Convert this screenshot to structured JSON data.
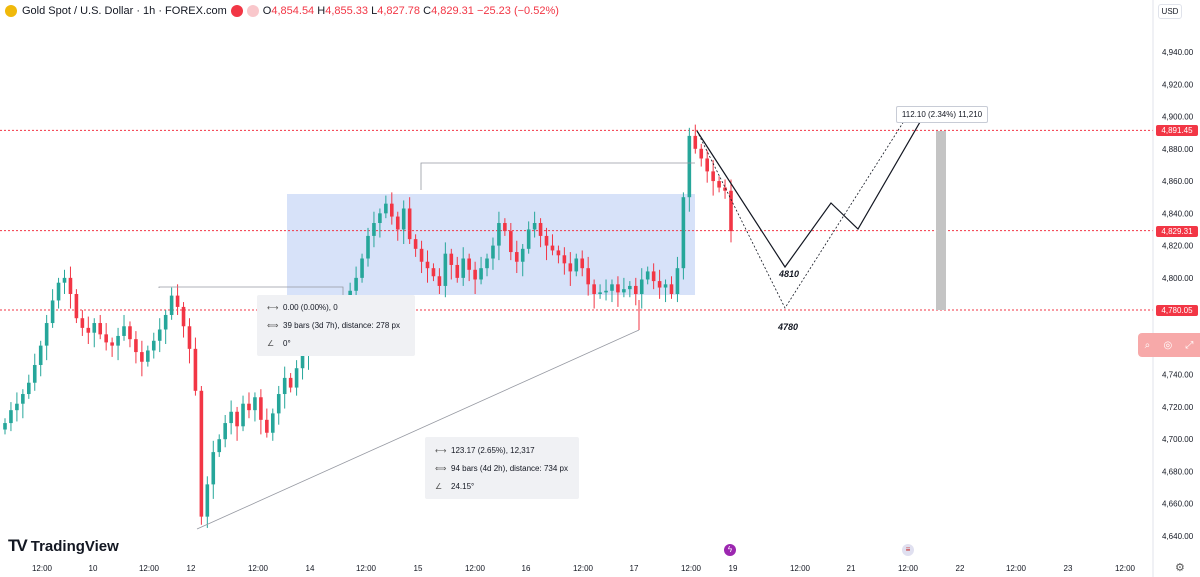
{
  "header": {
    "symbol": "Gold Spot / U.S. Dollar · 1h · FOREX.com",
    "o_key": "O",
    "o": "4,854.54",
    "h_key": "H",
    "h": "4,855.33",
    "l_key": "L",
    "l": "4,827.78",
    "c_key": "C",
    "c": "4,829.31",
    "change": "−25.23 (−0.52%)"
  },
  "currency": "USD",
  "brand": "TradingView",
  "price_labels": {
    "top": "4,891.45",
    "current": "4,829.31",
    "bottom": "4,780.05"
  },
  "callout": "112.10 (2.34%) 11,210",
  "measure_small": {
    "price": "0.00 (0.00%), 0",
    "bars": "39 bars (3d 7h), distance: 278 px",
    "angle": "0°"
  },
  "measure_large": {
    "price": "123.17 (2.65%), 12,317",
    "bars": "94 bars (4d 2h), distance: 734 px",
    "angle": "24.15°"
  },
  "annotations": {
    "a1": "4810",
    "a2": "4780"
  },
  "icons": {
    "event1": "lightning-icon",
    "event2": "us-flag-icon",
    "settings": "gear-icon",
    "search": "search-icon"
  },
  "colors": {
    "up": "#26a69a",
    "down": "#f23645",
    "zone": "#c9d8f7"
  },
  "chart_data": {
    "type": "candlestick",
    "title": "Gold Spot / U.S. Dollar · 1h · FOREX.com",
    "y_ticks": [
      4940,
      4920,
      4900,
      4880,
      4860,
      4840,
      4820,
      4800,
      4780,
      4760,
      4740,
      4720,
      4700,
      4680,
      4660,
      4640
    ],
    "y_tick_labels": [
      "4,940.00",
      "4,920.00",
      "4,900.00",
      "4,880.00",
      "4,860.00",
      "4,840.00",
      "4,820.00",
      "4,800.00",
      "4,780.00",
      "4,760.00",
      "4,740.00",
      "4,720.00",
      "4,700.00",
      "4,680.00",
      "4,660.00",
      "4,640.00"
    ],
    "x_tick_labels": [
      "12:00",
      "10",
      "12:00",
      "12",
      "12:00",
      "14",
      "12:00",
      "15",
      "12:00",
      "16",
      "12:00",
      "17",
      "12:00",
      "19",
      "12:00",
      "21",
      "12:00",
      "22",
      "12:00",
      "23",
      "12:00"
    ],
    "ylim": [
      4635,
      4950
    ],
    "key_levels": [
      4891.45,
      4829.31,
      4780.05
    ],
    "close_sequence": [
      4710,
      4718,
      4722,
      4728,
      4735,
      4746,
      4758,
      4772,
      4786,
      4797,
      4800,
      4790,
      4775,
      4769,
      4766,
      4772,
      4765,
      4760,
      4758,
      4764,
      4770,
      4762,
      4754,
      4748,
      4755,
      4761,
      4768,
      4777,
      4789,
      4782,
      4770,
      4756,
      4730,
      4652,
      4672,
      4692,
      4700,
      4710,
      4717,
      4708,
      4722,
      4718,
      4726,
      4712,
      4704,
      4716,
      4728,
      4738,
      4732,
      4744,
      4752,
      4759,
      4766,
      4771,
      4763,
      4775,
      4782,
      4780,
      4792,
      4800,
      4812,
      4826,
      4834,
      4840,
      4846,
      4838,
      4830,
      4843,
      4824,
      4818,
      4810,
      4806,
      4801,
      4795,
      4815,
      4808,
      4800,
      4812,
      4805,
      4799,
      4806,
      4812,
      4820,
      4834,
      4829,
      4816,
      4810,
      4818,
      4830,
      4834,
      4826,
      4820,
      4817,
      4814,
      4809,
      4804,
      4812,
      4806,
      4796,
      4790,
      4791,
      4792,
      4796,
      4791,
      4793,
      4795,
      4790,
      4799,
      4804,
      4798,
      4794,
      4796,
      4790,
      4806,
      4850,
      4888,
      4880,
      4874,
      4866,
      4860,
      4856,
      4854,
      4829
    ]
  }
}
